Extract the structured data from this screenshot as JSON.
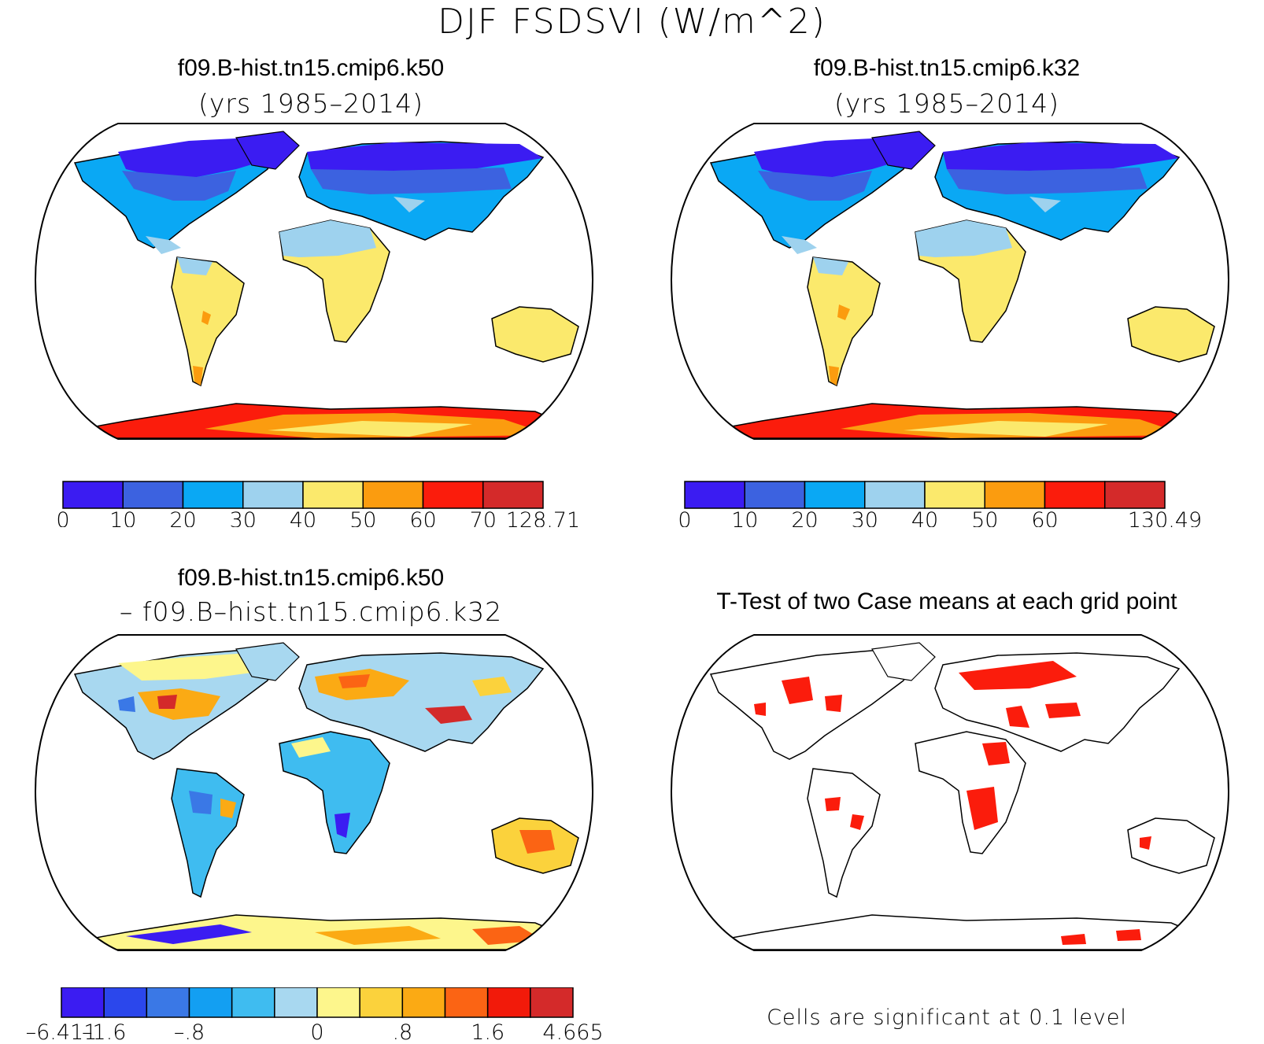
{
  "figure_title": "DJF FSDSVI (W/m^2)",
  "panels": {
    "top_left": {
      "case_name": "f09.B-hist.tn15.cmip6.k50",
      "years": "(yrs 1985–2014)",
      "colorbar": {
        "colors": [
          "#3b1cf2",
          "#3c62e0",
          "#0aa8f4",
          "#9ed2ee",
          "#fbe96c",
          "#fb9c0f",
          "#fb1c0c",
          "#d42a2a"
        ],
        "labels": [
          "0",
          "10",
          "20",
          "30",
          "40",
          "50",
          "60",
          "70",
          "128.71"
        ]
      }
    },
    "top_right": {
      "case_name": "f09.B-hist.tn15.cmip6.k32",
      "years": "(yrs 1985–2014)",
      "colorbar": {
        "colors": [
          "#3b1cf2",
          "#3c62e0",
          "#0aa8f4",
          "#9ed2ee",
          "#fbe96c",
          "#fb9c0f",
          "#fb1c0c",
          "#d42a2a"
        ],
        "labels": [
          "0",
          "10",
          "20",
          "30",
          "40",
          "50",
          "60",
          "",
          "130.49"
        ]
      }
    },
    "bottom_left": {
      "case_name": "f09.B-hist.tn15.cmip6.k50",
      "minus_line": "– f09.B–hist.tn15.cmip6.k32",
      "colorbar": {
        "colors": [
          "#3b1cf2",
          "#2b47ec",
          "#3a78e6",
          "#139ff2",
          "#3fbcf0",
          "#a8d8f0",
          "#fdf68c",
          "#fbd23c",
          "#fbaa14",
          "#fb6414",
          "#f21a0a",
          "#d42a2a"
        ],
        "labels": [
          "–6.411",
          "–1.6",
          "",
          "–.8",
          "",
          "",
          "0",
          "",
          ".8",
          "",
          "1.6",
          "",
          "4.665"
        ]
      }
    },
    "bottom_right": {
      "title": "T-Test of two Case means at each grid point",
      "footnote": "Cells are significant at 0.1 level",
      "significant_color": "#fb1c0c"
    }
  }
}
